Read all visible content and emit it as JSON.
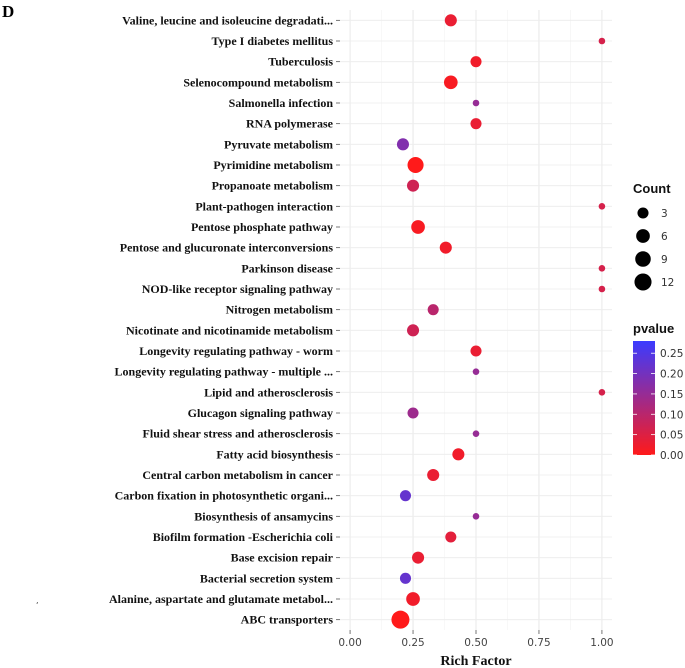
{
  "panel_label": "D",
  "chart_data": {
    "type": "scatter",
    "categories": [
      "Valine, leucine and isoleucine degradati...",
      "Type I diabetes mellitus",
      "Tuberculosis",
      "Selenocompound metabolism",
      "Salmonella infection",
      "RNA polymerase",
      "Pyruvate metabolism",
      "Pyrimidine metabolism",
      "Propanoate metabolism",
      "Plant-pathogen interaction",
      "Pentose phosphate pathway",
      "Pentose and glucuronate interconversions",
      "Parkinson disease",
      "NOD-like receptor signaling pathway",
      "Nitrogen metabolism",
      "Nicotinate and nicotinamide metabolism",
      "Longevity regulating pathway - worm",
      "Longevity regulating pathway - multiple ...",
      "Lipid and atherosclerosis",
      "Glucagon signaling pathway",
      "Fluid shear stress and atherosclerosis",
      "Fatty acid biosynthesis",
      "Central carbon metabolism in cancer",
      "Carbon fixation in photosynthetic organi...",
      "Biosynthesis of ansamycins",
      "Biofilm formation -Escherichia coli",
      "Base excision repair",
      "Bacterial secretion system",
      "Alanine, aspartate and glutamate metabol...",
      "ABC transporters"
    ],
    "rich_factor": [
      0.4,
      1.0,
      0.5,
      0.4,
      0.5,
      0.5,
      0.21,
      0.26,
      0.25,
      1.0,
      0.27,
      0.38,
      1.0,
      1.0,
      0.33,
      0.25,
      0.5,
      0.5,
      1.0,
      0.25,
      0.5,
      0.43,
      0.33,
      0.22,
      0.5,
      0.4,
      0.27,
      0.22,
      0.25,
      0.2
    ],
    "count": [
      4,
      1,
      3,
      6,
      1,
      3,
      4,
      10,
      4,
      1,
      6,
      4,
      1,
      1,
      3,
      4,
      3,
      1,
      1,
      3,
      1,
      4,
      4,
      3,
      1,
      3,
      4,
      3,
      6,
      14
    ],
    "pvalue": [
      0.03,
      0.06,
      0.02,
      0.01,
      0.15,
      0.03,
      0.18,
      0.0,
      0.07,
      0.06,
      0.01,
      0.02,
      0.06,
      0.06,
      0.1,
      0.07,
      0.03,
      0.15,
      0.06,
      0.14,
      0.15,
      0.02,
      0.03,
      0.22,
      0.15,
      0.04,
      0.03,
      0.22,
      0.02,
      0.0
    ],
    "xlabel": "Rich Factor",
    "ylabel": "",
    "xlim": [
      -0.04,
      1.04
    ],
    "xticks": [
      0.0,
      0.25,
      0.5,
      0.75,
      1.0
    ],
    "xtick_labels": [
      "0.00",
      "0.25",
      "0.50",
      "0.75",
      "1.00"
    ],
    "grid": true,
    "legend_size": {
      "title": "Count",
      "values": [
        3,
        6,
        9,
        12
      ],
      "labels": [
        "3",
        "6",
        "9",
        "12"
      ]
    },
    "legend_color": {
      "title": "pvalue",
      "range": [
        0.0,
        0.28
      ],
      "ticks": [
        0.25,
        0.2,
        0.15,
        0.1,
        0.05,
        0.0
      ],
      "tick_labels": [
        "0.25",
        "0.20",
        "0.15",
        "0.10",
        "0.05",
        "0.00"
      ],
      "low_color": "#ff1a1a",
      "high_color": "#3b3bff"
    },
    "legend_position": "right"
  }
}
